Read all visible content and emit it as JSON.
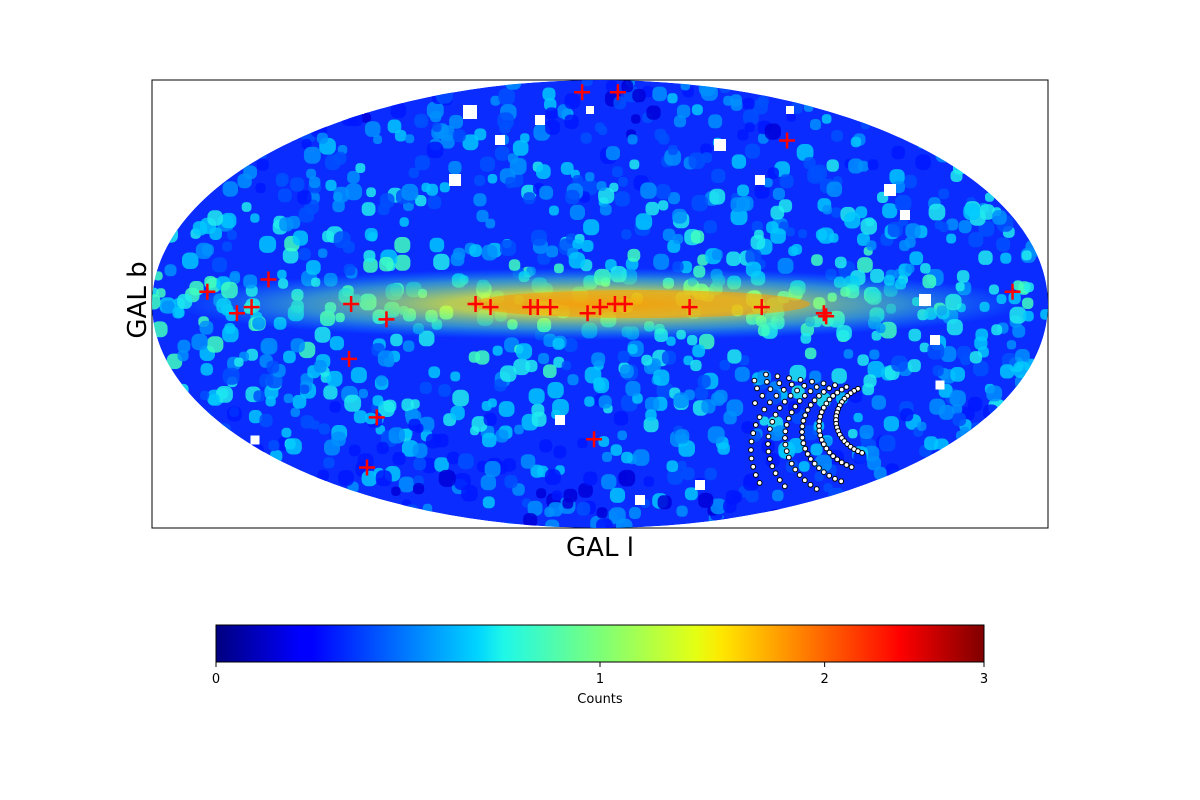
{
  "chart_data": {
    "type": "heatmap",
    "projection": "mollweide",
    "xlabel": "GAL l",
    "ylabel": "GAL b",
    "grid": false,
    "colormap": "jet",
    "colorbar": {
      "label": "Counts",
      "orientation": "horizontal",
      "placement": "bottom",
      "scale": "log(1+x)",
      "range": [
        0,
        3
      ],
      "ticks": [
        0,
        1,
        2,
        3
      ],
      "tick_labels": [
        "0",
        "1",
        "2",
        "3"
      ]
    },
    "colors": {
      "marker": "#ff0000",
      "dark_blue": "#00007f",
      "blue": "#0000ff",
      "cyan": "#00e5f0",
      "yellow": "#f5ff00",
      "red": "#ff0000",
      "dark_red": "#7f0000"
    },
    "background_sources": {
      "description_note": "dense field of smoothed point sources, enhanced along the Galactic plane (b≈0)",
      "pattern": "clustered-blobs"
    },
    "markers": {
      "symbol": "+",
      "color": "#ff0000",
      "points": [
        {
          "l": 158,
          "b": 4
        },
        {
          "l": 146,
          "b": -3
        },
        {
          "l": 140,
          "b": -1
        },
        {
          "l": 134,
          "b": 8
        },
        {
          "l": 100,
          "b": 0
        },
        {
          "l": 86,
          "b": -5
        },
        {
          "l": 104,
          "b": -18
        },
        {
          "l": 104,
          "b": -38
        },
        {
          "l": 137,
          "b": -57
        },
        {
          "l": 50,
          "b": 0
        },
        {
          "l": 44,
          "b": -1
        },
        {
          "l": 28,
          "b": -1
        },
        {
          "l": 25,
          "b": -1
        },
        {
          "l": 20,
          "b": -1
        },
        {
          "l": 5,
          "b": -3
        },
        {
          "l": 0,
          "b": -1
        },
        {
          "l": -6,
          "b": 0
        },
        {
          "l": -10,
          "b": 0
        },
        {
          "l": -36,
          "b": -1
        },
        {
          "l": -65,
          "b": -1
        },
        {
          "l": -90,
          "b": -3
        },
        {
          "l": -91,
          "b": -4
        },
        {
          "l": -166,
          "b": 4
        },
        {
          "l": 3,
          "b": -46
        },
        {
          "l": 22,
          "b": 80
        },
        {
          "l": -22,
          "b": 80
        },
        {
          "l": -110,
          "b": 57
        }
      ]
    },
    "overlay_region": {
      "symbol": "open-circle",
      "note": "dense block of small black circles (survey footprint) near l≈-75 to -120, b≈-20 to -60"
    }
  }
}
